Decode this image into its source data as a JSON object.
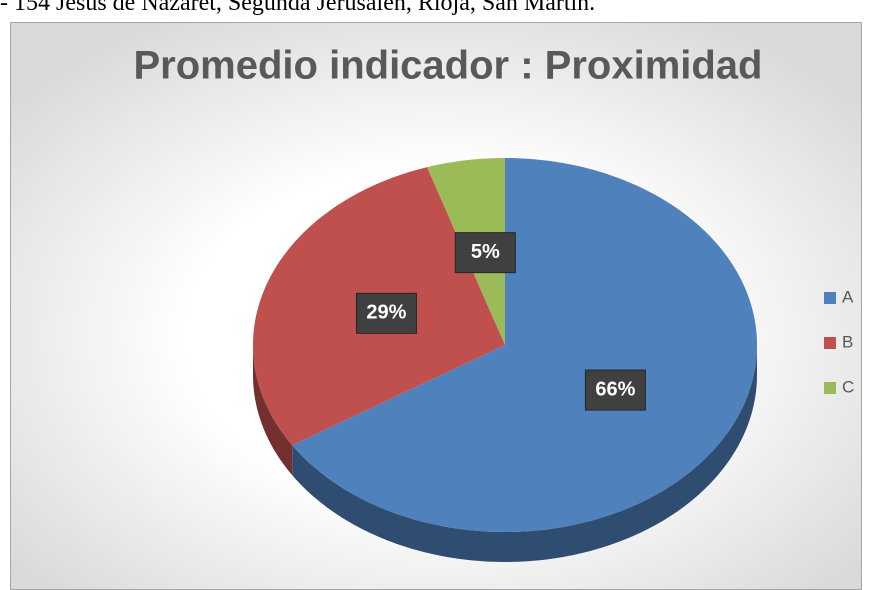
{
  "header_text": "- 154 Jesús de Nazaret, Segunda Jerusalén, Rioja, San Martín.",
  "chart_data": {
    "type": "pie",
    "title": "Promedio indicador : Proximidad",
    "categories": [
      "A",
      "B",
      "C"
    ],
    "values": [
      66,
      29,
      5
    ],
    "value_labels": [
      "66%",
      "29%",
      "5%"
    ],
    "colors": [
      "#4f81bd",
      "#c0504d",
      "#9bbb59"
    ],
    "legend": "right"
  }
}
